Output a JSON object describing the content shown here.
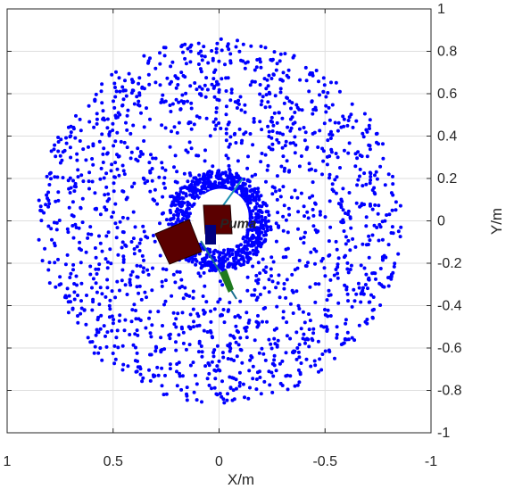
{
  "chart_data": {
    "type": "scatter",
    "title": "",
    "xlabel": "X/m",
    "ylabel": "Y/m",
    "xlim": [
      -1,
      1
    ],
    "ylim": [
      -1,
      1
    ],
    "x_reversed": true,
    "y_axis_side": "right",
    "grid": true,
    "x_ticks": [
      1,
      0.5,
      0,
      -0.5,
      -1
    ],
    "x_tick_labels": [
      "1",
      "0.5",
      "0",
      "-0.5",
      "-1"
    ],
    "y_ticks": [
      -1,
      -0.8,
      -0.6,
      -0.4,
      -0.2,
      0,
      0.2,
      0.4,
      0.6,
      0.8,
      1
    ],
    "y_tick_labels": [
      "-1",
      "-0.8",
      "-0.6",
      "-0.4",
      "-0.2",
      "0",
      "0.2",
      "0.4",
      "0.6",
      "0.8",
      "1"
    ],
    "point_color": "#0000ff",
    "workspace": {
      "inner_radius": 0.14,
      "outer_radius": 0.86,
      "approx_points": 2400
    },
    "annotation": {
      "text": "Puma",
      "x": -0.08,
      "y": 0.0
    }
  }
}
